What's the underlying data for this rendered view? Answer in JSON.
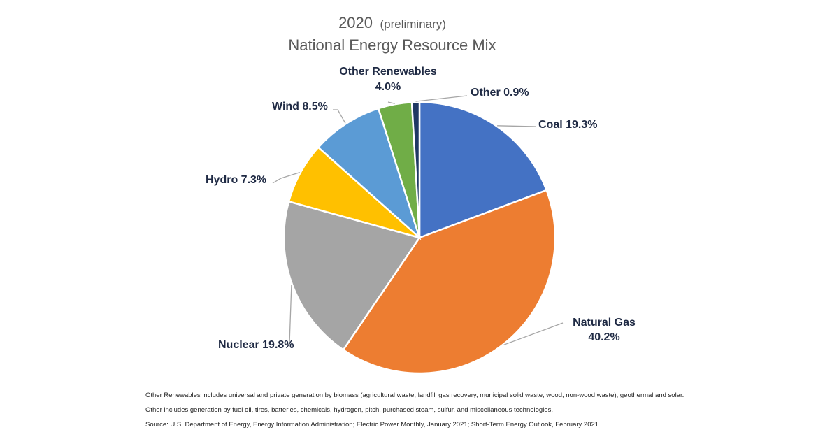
{
  "chart_data": {
    "type": "pie",
    "title_year": "2020",
    "title_qualifier": "(preliminary)",
    "title": "National Energy Resource Mix",
    "slices": [
      {
        "name": "Coal",
        "value": 19.3,
        "label": "Coal 19.3%",
        "color": "#4472c4"
      },
      {
        "name": "Natural Gas",
        "value": 40.2,
        "label_name": "Natural Gas",
        "label_value": "40.2%",
        "color": "#ed7d31"
      },
      {
        "name": "Nuclear",
        "value": 19.8,
        "label": "Nuclear 19.8%",
        "color": "#a5a5a5"
      },
      {
        "name": "Hydro",
        "value": 7.3,
        "label": "Hydro 7.3%",
        "color": "#ffc000"
      },
      {
        "name": "Wind",
        "value": 8.5,
        "label": "Wind 8.5%",
        "color": "#5b9bd5"
      },
      {
        "name": "Other Renewables",
        "value": 4.0,
        "label_name": "Other Renewables",
        "label_value": "4.0%",
        "color": "#70ad47"
      },
      {
        "name": "Other",
        "value": 0.9,
        "label": "Other  0.9%",
        "color": "#1f3864"
      }
    ]
  },
  "notes": [
    "Other Renewables includes universal and private generation by biomass (agricultural waste, landfill gas recovery, municipal solid waste, wood, non-wood waste), geothermal and solar.",
    "Other includes generation by fuel oil, tires, batteries, chemicals, hydrogen, pitch, purchased steam, sulfur, and miscellaneous technologies.",
    "Source: U.S. Department of Energy, Energy Information Administration; Electric Power Monthly, January 2021; Short-Term Energy Outlook, February 2021."
  ]
}
